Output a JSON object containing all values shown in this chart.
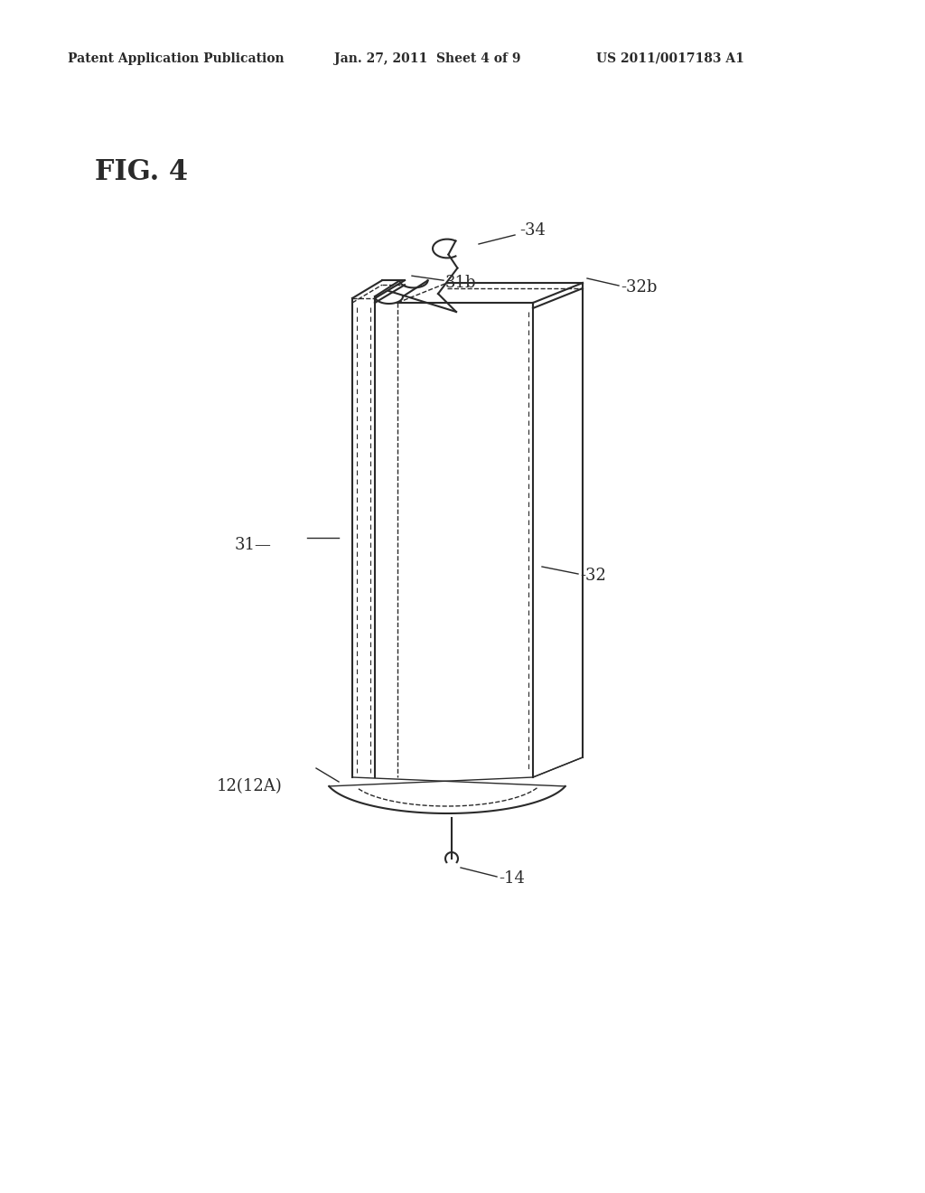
{
  "title": "FIG. 4",
  "header_left": "Patent Application Publication",
  "header_center": "Jan. 27, 2011  Sheet 4 of 9",
  "header_right": "US 2011/0017183 A1",
  "background_color": "#ffffff",
  "line_color": "#2a2a2a",
  "label_color": "#000000",
  "fig_label_size": 22,
  "header_size": 10,
  "annotation_size": 13
}
